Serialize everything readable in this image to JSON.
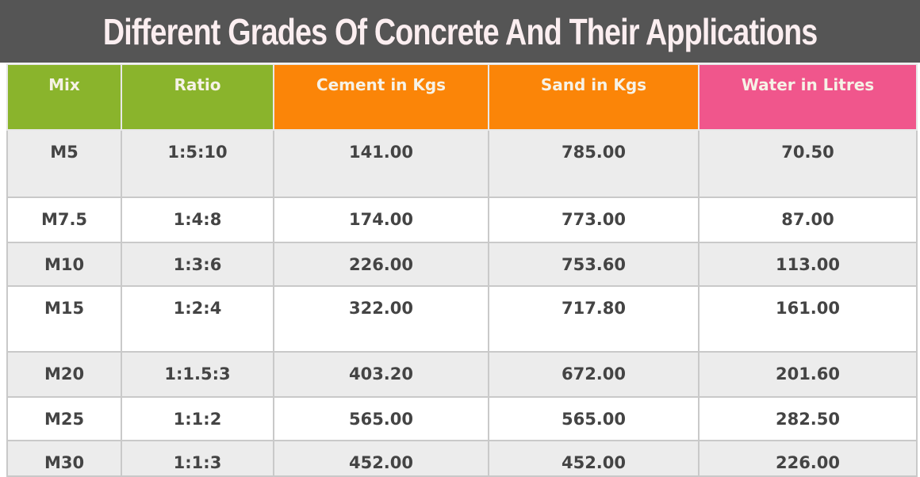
{
  "title": "Different Grades Of Concrete And Their Applications",
  "colors": {
    "title_bar": "#555555",
    "mix_header": "#8ab42c",
    "cement_header": "#fb8508",
    "water_header": "#f0568c"
  },
  "headers": [
    "Mix",
    "Ratio",
    "Cement in Kgs",
    "Sand in Kgs",
    "Water in Litres"
  ],
  "rows": [
    [
      "M5",
      "1:5:10",
      "141.00",
      "785.00",
      "70.50"
    ],
    [
      "M7.5",
      "1:4:8",
      "174.00",
      "773.00",
      "87.00"
    ],
    [
      "M10",
      "1:3:6",
      "226.00",
      "753.60",
      "113.00"
    ],
    [
      "M15",
      "1:2:4",
      "322.00",
      "717.80",
      "161.00"
    ],
    [
      "M20",
      "1:1.5:3",
      "403.20",
      "672.00",
      "201.60"
    ],
    [
      "M25",
      "1:1:2",
      "565.00",
      "565.00",
      "282.50"
    ],
    [
      "M30",
      "1:1:3",
      "452.00",
      "452.00",
      "226.00"
    ]
  ]
}
